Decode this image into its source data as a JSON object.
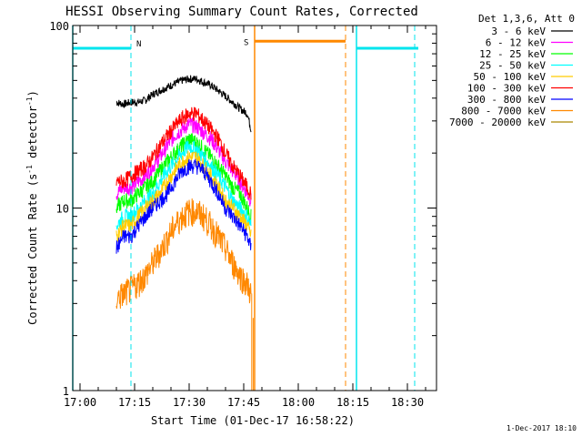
{
  "chart_data": {
    "type": "line",
    "title": "HESSI Observing Summary Count Rates, Corrected",
    "xlabel": "Start Time (01-Dec-17 16:58:22)",
    "ylabel_main": "Corrected Count Rate (s",
    "ylabel_sup1": "-1",
    "ylabel_mid": " detector",
    "ylabel_sup2": "-1",
    "ylabel_end": ")",
    "yscale": "log",
    "ylim": [
      1,
      100
    ],
    "xlim_minutes": [
      -2,
      98
    ],
    "x_ticks": [
      {
        "m": 0,
        "label": "17:00"
      },
      {
        "m": 15,
        "label": "17:15"
      },
      {
        "m": 30,
        "label": "17:30"
      },
      {
        "m": 45,
        "label": "17:45"
      },
      {
        "m": 60,
        "label": "18:00"
      },
      {
        "m": 75,
        "label": "18:15"
      },
      {
        "m": 90,
        "label": "18:30"
      }
    ],
    "y_ticks": [
      {
        "v": 1,
        "label": "1"
      },
      {
        "v": 10,
        "label": "10"
      },
      {
        "v": 100,
        "label": "100"
      }
    ],
    "legend_header": "Det 1,3,6, Att 0",
    "legend_position": "top-right",
    "series": [
      {
        "name": "3 - 6 keV",
        "color": "#000000",
        "x": [
          10,
          12,
          14,
          16,
          18,
          20,
          22,
          24,
          26,
          28,
          30,
          32,
          34,
          36,
          38,
          40,
          42,
          44,
          46,
          47
        ],
        "y": [
          38,
          37,
          38,
          38,
          39,
          42,
          44,
          46,
          48,
          50,
          51,
          51,
          49,
          47,
          44,
          41,
          38,
          35,
          33,
          27
        ]
      },
      {
        "name": "6 - 12 keV",
        "color": "#ff00ff",
        "x": [
          10,
          12,
          14,
          16,
          18,
          20,
          22,
          24,
          26,
          28,
          30,
          32,
          34,
          36,
          38,
          40,
          42,
          44,
          46,
          47
        ],
        "y": [
          12,
          13,
          13,
          14,
          15,
          17,
          19,
          22,
          25,
          27,
          29,
          28,
          26,
          24,
          21,
          18,
          16,
          14,
          12,
          11
        ]
      },
      {
        "name": "12 - 25 keV",
        "color": "#00ff00",
        "x": [
          10,
          12,
          14,
          16,
          18,
          20,
          22,
          24,
          26,
          28,
          30,
          32,
          34,
          36,
          38,
          40,
          42,
          44,
          46,
          47
        ],
        "y": [
          10,
          11,
          11,
          12,
          13,
          14,
          16,
          18,
          20,
          22,
          24,
          23,
          21,
          19,
          17,
          15,
          13,
          12,
          10,
          9
        ]
      },
      {
        "name": "25 - 50 keV",
        "color": "#00ffff",
        "x": [
          10,
          12,
          14,
          16,
          18,
          20,
          22,
          24,
          26,
          28,
          30,
          32,
          34,
          36,
          38,
          40,
          42,
          44,
          46,
          47
        ],
        "y": [
          8,
          9,
          9,
          10,
          11,
          12,
          14,
          16,
          18,
          20,
          22,
          21,
          19,
          17,
          15,
          13,
          11,
          10,
          9,
          8
        ]
      },
      {
        "name": "50 - 100 keV",
        "color": "#ffcc00",
        "x": [
          10,
          12,
          14,
          16,
          18,
          20,
          22,
          24,
          26,
          28,
          30,
          32,
          34,
          36,
          38,
          40,
          42,
          44,
          46,
          47
        ],
        "y": [
          7,
          8,
          8,
          9,
          10,
          11,
          12,
          14,
          16,
          18,
          19,
          19,
          17,
          15,
          13,
          11,
          10,
          9,
          8,
          7
        ]
      },
      {
        "name": "100 - 300 keV",
        "color": "#ff0000",
        "x": [
          10,
          12,
          14,
          16,
          18,
          20,
          22,
          24,
          26,
          28,
          30,
          32,
          34,
          36,
          38,
          40,
          42,
          44,
          46,
          47
        ],
        "y": [
          14,
          14,
          15,
          16,
          17,
          19,
          22,
          25,
          28,
          31,
          33,
          33,
          30,
          27,
          24,
          20,
          17,
          15,
          13,
          12
        ]
      },
      {
        "name": "300 - 800 keV",
        "color": "#0000ff",
        "x": [
          10,
          12,
          14,
          16,
          18,
          20,
          22,
          24,
          26,
          28,
          30,
          32,
          34,
          36,
          38,
          40,
          42,
          44,
          46,
          47
        ],
        "y": [
          6,
          7,
          7,
          8,
          9,
          10,
          11,
          12,
          14,
          16,
          17,
          17,
          16,
          14,
          12,
          10,
          9,
          8,
          7,
          6
        ]
      },
      {
        "name": "800 - 7000 keV",
        "color": "#ff8800",
        "x": [
          10,
          12,
          14,
          16,
          18,
          20,
          22,
          24,
          26,
          28,
          30,
          32,
          34,
          36,
          38,
          40,
          42,
          44,
          46,
          47
        ],
        "y": [
          3.2,
          3.4,
          3.6,
          3.9,
          4.3,
          5,
          5.8,
          6.8,
          8,
          9,
          9.6,
          9.6,
          9,
          8,
          7,
          6,
          5,
          4.3,
          3.8,
          3.4
        ]
      },
      {
        "name": "7000 - 20000 keV",
        "color": "#aa8800",
        "x": [],
        "y": []
      }
    ],
    "flags": {
      "attenuator_line": {
        "label": "",
        "y": 75,
        "segments": [
          [
            -2,
            14
          ],
          [
            76,
            93
          ]
        ],
        "dashed_verticals": [
          14,
          92
        ],
        "solid_verticals": [
          -2,
          76
        ]
      },
      "saa_line": {
        "label": "S",
        "y": 82,
        "segments": [
          [
            48,
            73
          ]
        ],
        "dashed_verticals": [
          73
        ],
        "solid_verticals": [
          48
        ]
      },
      "night_label": "N"
    }
  },
  "footer_date": "1-Dec-2017 18:10"
}
